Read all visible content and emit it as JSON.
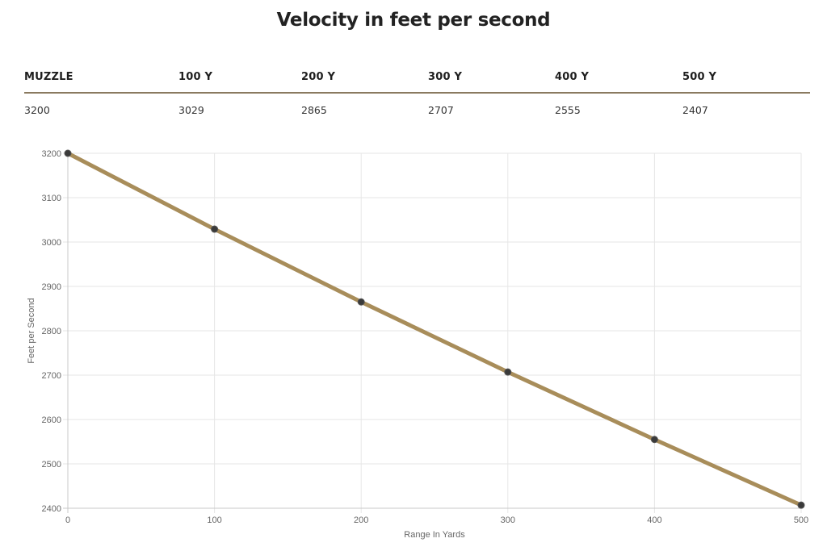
{
  "page": {
    "title": "Velocity in feet per second"
  },
  "table": {
    "headers": [
      "MUZZLE",
      "100 Y",
      "200 Y",
      "300 Y",
      "400 Y",
      "500 Y"
    ],
    "values": [
      "3200",
      "3029",
      "2865",
      "2707",
      "2555",
      "2407"
    ]
  },
  "chart_data": {
    "type": "line",
    "title": "",
    "xlabel": "Range In Yards",
    "ylabel": "Feet per Second",
    "x": [
      0,
      100,
      200,
      300,
      400,
      500
    ],
    "series": [
      {
        "values": [
          3200,
          3029,
          2865,
          2707,
          2555,
          2407
        ]
      }
    ],
    "xlim": [
      0,
      500
    ],
    "ylim": [
      2400,
      3200
    ],
    "x_ticks": [
      0,
      100,
      200,
      300,
      400,
      500
    ],
    "y_ticks": [
      2400,
      2500,
      2600,
      2700,
      2800,
      2900,
      3000,
      3100,
      3200
    ],
    "grid": true,
    "legend": "none",
    "line_color": "#a88d5a",
    "point_color": "#3a3a3a"
  }
}
